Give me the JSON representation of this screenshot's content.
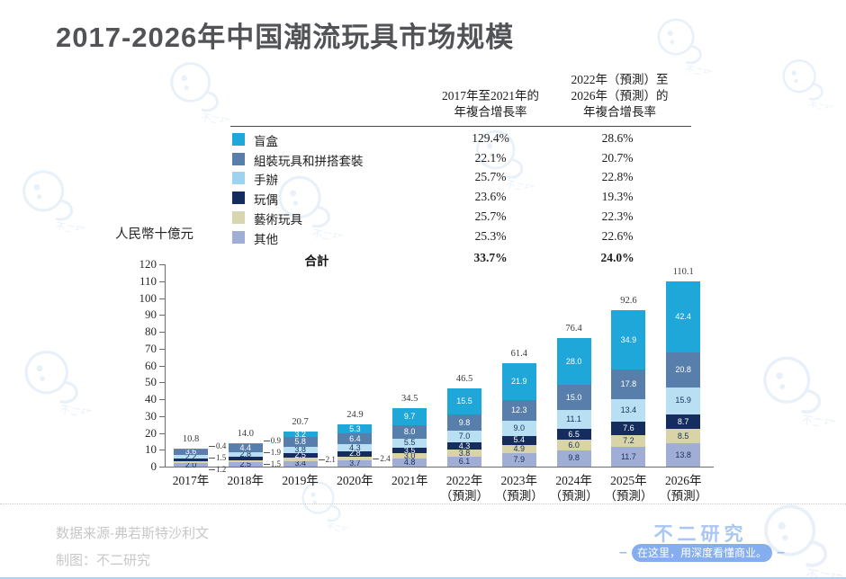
{
  "header": {
    "title": "2017-2026年中国潮流玩具市场规模"
  },
  "legend_table": {
    "col1_header_lines": [
      "2017年至2021年的",
      "年複合增長率"
    ],
    "col2_header_lines": [
      "2022年（預測）至",
      "2026年（預測）的",
      "年複合增長率"
    ],
    "rows": [
      {
        "label": "盲盒",
        "color": "#1ea7d8",
        "cagr_2017_2021": "129.4%",
        "cagr_2022_2026": "28.6%"
      },
      {
        "label": "組裝玩具和拼搭套裝",
        "color": "#587fab",
        "cagr_2017_2021": "22.1%",
        "cagr_2022_2026": "20.7%"
      },
      {
        "label": "手辦",
        "color": "#9dd3ee",
        "cagr_2017_2021": "25.7%",
        "cagr_2022_2026": "22.8%"
      },
      {
        "label": "玩偶",
        "color": "#142c5e",
        "cagr_2017_2021": "23.6%",
        "cagr_2022_2026": "19.3%"
      },
      {
        "label": "藝術玩具",
        "color": "#d8d6b0",
        "cagr_2017_2021": "25.7%",
        "cagr_2022_2026": "22.3%"
      },
      {
        "label": "其他",
        "color": "#a0aed5",
        "cagr_2017_2021": "25.3%",
        "cagr_2022_2026": "22.6%"
      }
    ],
    "total_row": {
      "label": "合計",
      "cagr_2017_2021": "33.7%",
      "cagr_2022_2026": "24.0%"
    }
  },
  "chart_data": {
    "type": "bar",
    "stacked": true,
    "unit_label": "人民幣十億元",
    "ylim": [
      0,
      120
    ],
    "ytick_step": 10,
    "categories": [
      {
        "label": "2017年",
        "sub": ""
      },
      {
        "label": "2018年",
        "sub": ""
      },
      {
        "label": "2019年",
        "sub": ""
      },
      {
        "label": "2020年",
        "sub": ""
      },
      {
        "label": "2021年",
        "sub": ""
      },
      {
        "label": "2022年",
        "sub": "（預測）"
      },
      {
        "label": "2023年",
        "sub": "（預測）"
      },
      {
        "label": "2024年",
        "sub": "（預測）"
      },
      {
        "label": "2025年",
        "sub": "（預測）"
      },
      {
        "label": "2026年",
        "sub": "（預測）"
      }
    ],
    "series": [
      {
        "name": "盲盒",
        "color": "#1ea7d8",
        "values": [
          "0.4",
          "0.9",
          "3.2",
          "5.3",
          "9.7",
          "15.5",
          "21.9",
          "28.0",
          "34.9",
          "42.4"
        ]
      },
      {
        "name": "組裝玩具和拼搭套裝",
        "color": "#587fab",
        "values": [
          "3.6",
          "4.4",
          "5.8",
          "6.4",
          "8.0",
          "9.8",
          "12.3",
          "15.0",
          "17.8",
          "20.8"
        ]
      },
      {
        "name": "手辦",
        "color": "#b9dff2",
        "values": [
          "2.2",
          "2.8",
          "3.8",
          "4.3",
          "5.5",
          "7.0",
          "9.0",
          "11.1",
          "13.4",
          "15.9"
        ]
      },
      {
        "name": "玩偶",
        "color": "#142c5e",
        "values": [
          "1.5",
          "1.9",
          "2.5",
          "2.8",
          "3.5",
          "4.3",
          "5.4",
          "6.5",
          "7.6",
          "8.7"
        ]
      },
      {
        "name": "藝術玩具",
        "color": "#d8d4a8",
        "values": [
          "1.2",
          "1.5",
          "2.1",
          "2.4",
          "3.0",
          "3.8",
          "4.9",
          "6.0",
          "7.2",
          "8.5"
        ]
      },
      {
        "name": "其他",
        "color": "#a0aed5",
        "values": [
          "2.0",
          "2.5",
          "3.4",
          "3.7",
          "4.8",
          "6.1",
          "7.9",
          "9.8",
          "11.7",
          "13.8"
        ]
      }
    ],
    "totals": [
      "10.8",
      "14.0",
      "20.7",
      "24.9",
      "34.5",
      "46.5",
      "61.4",
      "76.4",
      "92.6",
      "110.1"
    ],
    "outside_labels": [
      [
        0,
        0
      ],
      [
        3,
        0
      ],
      [
        4,
        0
      ],
      [
        0,
        1
      ],
      [
        3,
        1
      ],
      [
        4,
        1
      ],
      [
        4,
        2
      ],
      [
        4,
        3
      ]
    ],
    "stack_order_bottom_to_top": [
      "其他",
      "藝術玩具",
      "玩偶",
      "手辦",
      "組裝玩具和拼搭套裝",
      "盲盒"
    ]
  },
  "footer": {
    "source": "数据来源-弗若斯特沙利文",
    "credit": "制图：不二研究",
    "brand": "不二研究",
    "slogan": "在这里，用深度看懂商业。"
  }
}
